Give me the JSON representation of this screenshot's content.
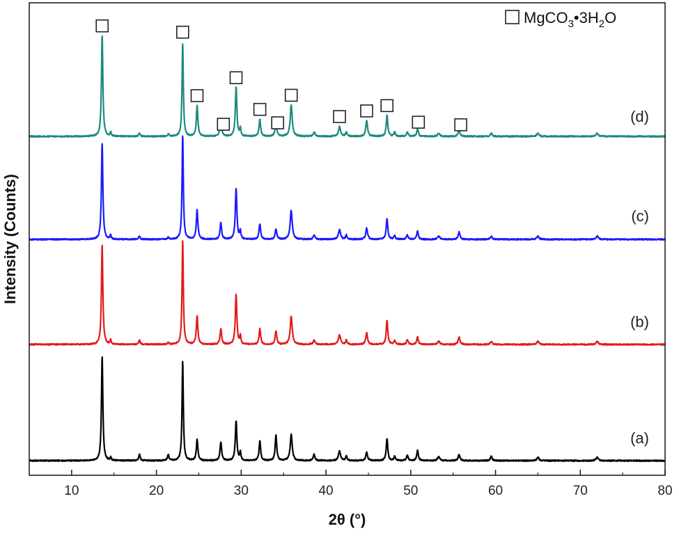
{
  "chart_data": {
    "type": "line",
    "xlabel": "2θ (°)",
    "ylabel": "Intensity (Counts)",
    "xlim": [
      5,
      80
    ],
    "x_ticks": [
      "10",
      "20",
      "30",
      "40",
      "50",
      "60",
      "70",
      "80"
    ],
    "x_tick_values": [
      10,
      20,
      30,
      40,
      50,
      60,
      70,
      80
    ],
    "y_ticks_shown": false,
    "grid": false,
    "legend": {
      "position": "top-right",
      "marker": "open-square",
      "label_parts": [
        "MgCO",
        "3",
        "•3H",
        "2",
        "O"
      ]
    },
    "peaks": [
      {
        "two_theta": 13.6,
        "width": 0.2
      },
      {
        "two_theta": 14.6,
        "width": 0.15
      },
      {
        "two_theta": 18.0,
        "width": 0.2
      },
      {
        "two_theta": 21.4,
        "width": 0.2
      },
      {
        "two_theta": 23.1,
        "width": 0.18
      },
      {
        "two_theta": 24.8,
        "width": 0.22
      },
      {
        "two_theta": 27.6,
        "width": 0.22
      },
      {
        "two_theta": 29.4,
        "width": 0.22
      },
      {
        "two_theta": 29.9,
        "width": 0.15
      },
      {
        "two_theta": 32.2,
        "width": 0.22
      },
      {
        "two_theta": 34.1,
        "width": 0.22
      },
      {
        "two_theta": 35.9,
        "width": 0.28
      },
      {
        "two_theta": 38.6,
        "width": 0.25
      },
      {
        "two_theta": 41.6,
        "width": 0.3
      },
      {
        "two_theta": 42.4,
        "width": 0.2
      },
      {
        "two_theta": 44.8,
        "width": 0.25
      },
      {
        "two_theta": 47.2,
        "width": 0.22
      },
      {
        "two_theta": 48.1,
        "width": 0.2
      },
      {
        "two_theta": 49.6,
        "width": 0.25
      },
      {
        "two_theta": 50.8,
        "width": 0.22
      },
      {
        "two_theta": 53.3,
        "width": 0.3
      },
      {
        "two_theta": 55.7,
        "width": 0.25
      },
      {
        "two_theta": 59.5,
        "width": 0.25
      },
      {
        "two_theta": 65.0,
        "width": 0.3
      },
      {
        "two_theta": 72.0,
        "width": 0.3
      }
    ],
    "series": [
      {
        "name": "(a)",
        "color": "#000000",
        "intensities": [
          1.0,
          0.03,
          0.06,
          0.06,
          0.96,
          0.2,
          0.18,
          0.38,
          0.08,
          0.19,
          0.24,
          0.25,
          0.06,
          0.09,
          0.04,
          0.08,
          0.21,
          0.04,
          0.05,
          0.1,
          0.04,
          0.06,
          0.04,
          0.03,
          0.03
        ]
      },
      {
        "name": "(b)",
        "color": "#e41a1c",
        "intensities": [
          0.96,
          0.04,
          0.04,
          0.02,
          1.0,
          0.27,
          0.15,
          0.48,
          0.08,
          0.15,
          0.13,
          0.27,
          0.04,
          0.09,
          0.04,
          0.11,
          0.23,
          0.04,
          0.04,
          0.07,
          0.03,
          0.07,
          0.03,
          0.03,
          0.03
        ]
      },
      {
        "name": "(c)",
        "color": "#1a1aff",
        "intensities": [
          0.93,
          0.04,
          0.03,
          0.02,
          1.0,
          0.28,
          0.16,
          0.49,
          0.08,
          0.15,
          0.1,
          0.28,
          0.04,
          0.09,
          0.04,
          0.11,
          0.2,
          0.04,
          0.04,
          0.08,
          0.03,
          0.07,
          0.03,
          0.03,
          0.03
        ]
      },
      {
        "name": "(d)",
        "color": "#1b8a80",
        "intensities": [
          0.97,
          0.04,
          0.03,
          0.02,
          0.9,
          0.29,
          0.17,
          0.47,
          0.08,
          0.16,
          0.14,
          0.3,
          0.04,
          0.09,
          0.04,
          0.15,
          0.2,
          0.04,
          0.04,
          0.07,
          0.03,
          0.06,
          0.03,
          0.03,
          0.03
        ]
      }
    ],
    "marked_peaks_2theta": [
      13.6,
      23.1,
      24.8,
      27.9,
      29.4,
      32.2,
      34.3,
      35.9,
      41.6,
      44.8,
      47.2,
      50.9,
      55.9
    ]
  }
}
